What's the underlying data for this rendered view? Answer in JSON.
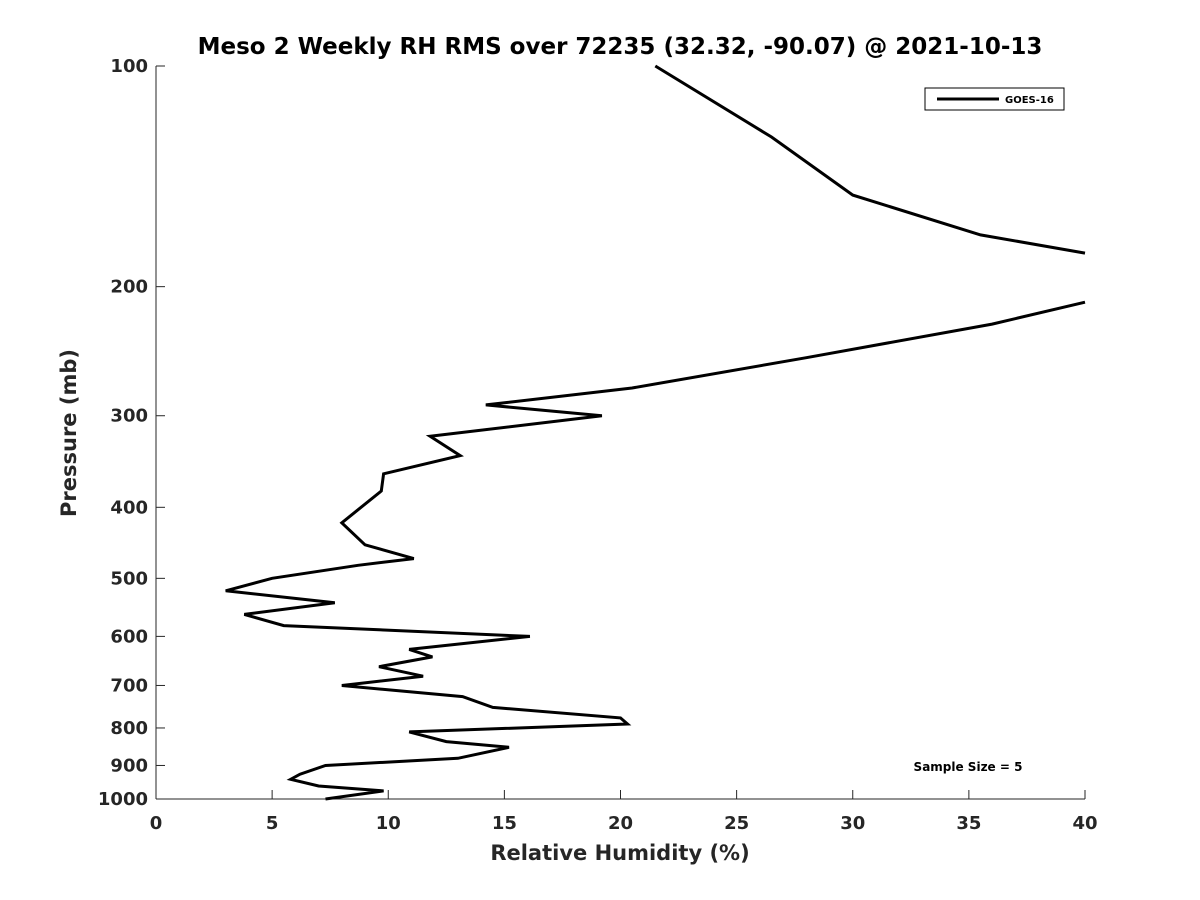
{
  "chart_data": {
    "type": "line",
    "title": "Meso 2 Weekly RH RMS over 72235 (32.32, -90.07) @ 2021-10-13",
    "xlabel": "Relative Humidity (%)",
    "ylabel": "Pressure (mb)",
    "xlim": [
      0,
      40
    ],
    "ylim": [
      100,
      1000
    ],
    "y_scale": "log",
    "y_reversed": true,
    "grid": false,
    "legend_position": "top-right",
    "x_ticks": [
      "0",
      "5",
      "10",
      "15",
      "20",
      "25",
      "30",
      "35",
      "40"
    ],
    "y_ticks": [
      "100",
      "200",
      "300",
      "400",
      "500",
      "600",
      "700",
      "800",
      "900",
      "1000"
    ],
    "annotation": "Sample Size = 5",
    "series": [
      {
        "name": "GOES-16",
        "color": "#000000",
        "points": [
          [
            21.5,
            100
          ],
          [
            26.5,
            125
          ],
          [
            30.0,
            150
          ],
          [
            35.5,
            170
          ],
          [
            40.0,
            180
          ],
          [
            null,
            195
          ],
          [
            40.0,
            210
          ],
          [
            36.0,
            225
          ],
          [
            28.0,
            250
          ],
          [
            20.5,
            275
          ],
          [
            14.2,
            290
          ],
          [
            19.2,
            300
          ],
          [
            11.8,
            320
          ],
          [
            13.1,
            340
          ],
          [
            9.8,
            360
          ],
          [
            9.7,
            380
          ],
          [
            8.0,
            420
          ],
          [
            9.0,
            450
          ],
          [
            11.1,
            470
          ],
          [
            8.7,
            480
          ],
          [
            5.0,
            500
          ],
          [
            3.0,
            520
          ],
          [
            7.7,
            540
          ],
          [
            3.8,
            560
          ],
          [
            5.5,
            580
          ],
          [
            16.1,
            600
          ],
          [
            10.9,
            625
          ],
          [
            11.9,
            640
          ],
          [
            9.6,
            660
          ],
          [
            11.5,
            680
          ],
          [
            8.0,
            700
          ],
          [
            13.2,
            725
          ],
          [
            14.5,
            750
          ],
          [
            20.0,
            775
          ],
          [
            20.3,
            790
          ],
          [
            10.9,
            810
          ],
          [
            12.5,
            835
          ],
          [
            15.2,
            850
          ],
          [
            13.0,
            880
          ],
          [
            7.3,
            900
          ],
          [
            6.2,
            925
          ],
          [
            5.8,
            940
          ],
          [
            7.0,
            960
          ],
          [
            9.8,
            975
          ],
          [
            7.3,
            1000
          ]
        ]
      }
    ]
  }
}
